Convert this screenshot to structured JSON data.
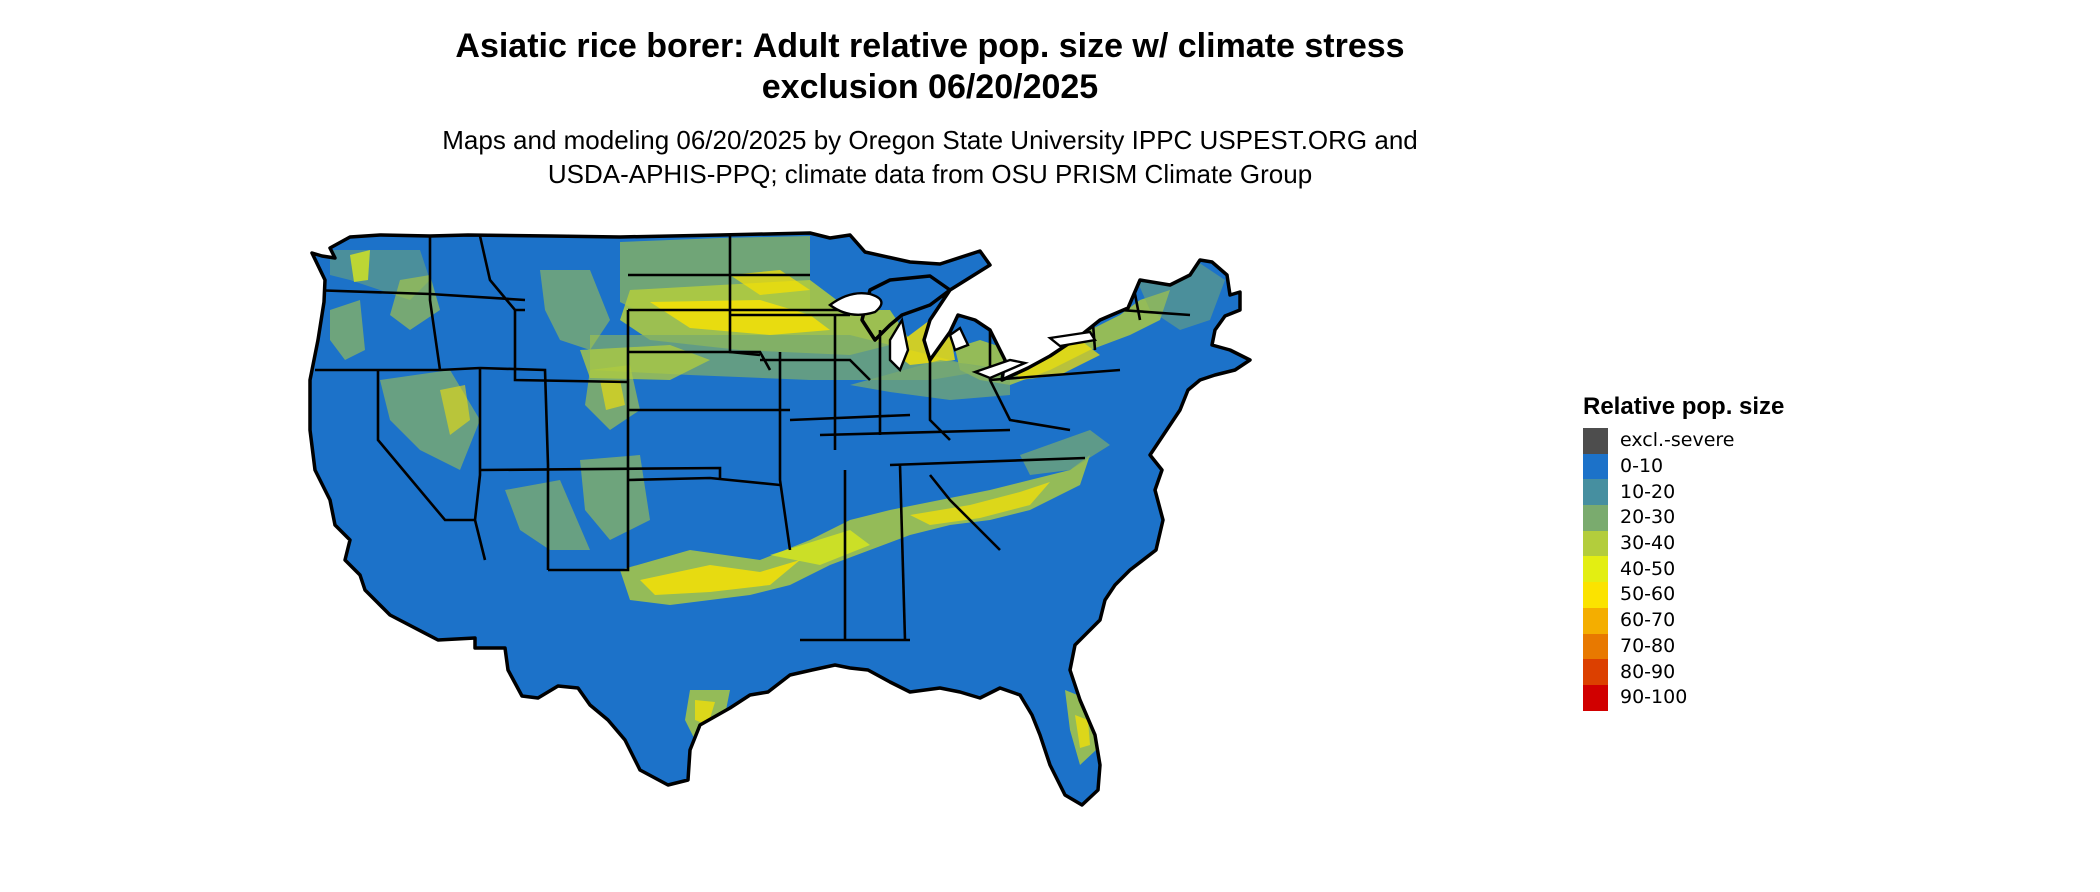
{
  "title": {
    "line1": "Asiatic rice borer: Adult relative pop. size w/ climate stress",
    "line2": "exclusion 06/20/2025"
  },
  "subtitle": {
    "line1": "Maps and modeling 06/20/2025 by Oregon State University IPPC USPEST.ORG and",
    "line2": "USDA-APHIS-PPQ; climate data from OSU PRISM Climate Group"
  },
  "legend": {
    "title": "Relative pop. size",
    "items": [
      {
        "label": "excl.-severe",
        "color": "#4d4d4d"
      },
      {
        "label": "0-10",
        "color": "#1c72c9"
      },
      {
        "label": "10-20",
        "color": "#468fa0"
      },
      {
        "label": "20-30",
        "color": "#7aab6e"
      },
      {
        "label": "30-40",
        "color": "#b3cd3c"
      },
      {
        "label": "40-50",
        "color": "#e3ee12"
      },
      {
        "label": "50-60",
        "color": "#fbe300"
      },
      {
        "label": "60-70",
        "color": "#f4ae00"
      },
      {
        "label": "70-80",
        "color": "#e87900"
      },
      {
        "label": "80-90",
        "color": "#dc4000"
      },
      {
        "label": "90-100",
        "color": "#d10000"
      }
    ]
  },
  "map": {
    "base_color": "#1c72c9",
    "border_color": "#000000",
    "regions": "Contiguous United States with state boundaries"
  }
}
